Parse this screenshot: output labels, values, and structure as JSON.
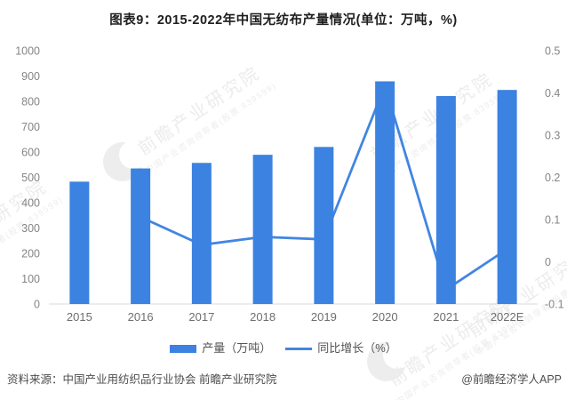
{
  "chart_data": {
    "type": "bar+line",
    "title": "图表9：2015-2022年中国无纺布产量情况(单位：万吨，%)",
    "categories": [
      "2015",
      "2016",
      "2017",
      "2018",
      "2019",
      "2020",
      "2021",
      "2022E"
    ],
    "series": [
      {
        "name": "产量（万吨）",
        "type": "bar",
        "axis": "left",
        "values": [
          483,
          535,
          557,
          589,
          620,
          879,
          821,
          845
        ]
      },
      {
        "name": "同比增长（%）",
        "type": "line",
        "axis": "right",
        "values": [
          null,
          0.106,
          0.04,
          0.059,
          0.053,
          0.417,
          -0.066,
          0.03
        ]
      }
    ],
    "left_axis": {
      "min": 0,
      "max": 1000,
      "step": 100
    },
    "right_axis": {
      "min": -0.1,
      "max": 0.5,
      "step": 0.1
    },
    "grid": false,
    "legend_position": "bottom",
    "colors": {
      "bar": "#3c82e1",
      "line": "#4285e2",
      "axis_line": "#d9d9d9",
      "tick_text": "#858585",
      "category_text": "#6e6e6e"
    }
  },
  "footer": {
    "source": "资料来源：中国产业用纺织品行业协会 前瞻产业研究院",
    "credit": "@前瞻经济学人APP"
  },
  "watermark": {
    "text": "前瞻产业研究院",
    "subtext": "中国产业咨询领导者(股票:839599)"
  }
}
